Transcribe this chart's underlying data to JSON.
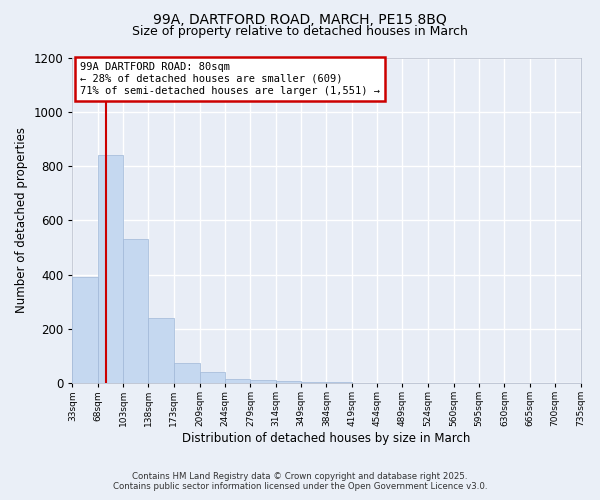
{
  "title_line1": "99A, DARTFORD ROAD, MARCH, PE15 8BQ",
  "title_line2": "Size of property relative to detached houses in March",
  "xlabel": "Distribution of detached houses by size in March",
  "ylabel": "Number of detached properties",
  "bar_values": [
    390,
    840,
    530,
    240,
    75,
    40,
    15,
    10,
    8,
    5,
    3,
    2,
    2,
    1,
    1,
    1,
    1,
    0,
    0,
    0
  ],
  "bin_edges": [
    33,
    68,
    103,
    138,
    173,
    209,
    244,
    279,
    314,
    349,
    384,
    419,
    454,
    489,
    524,
    560,
    595,
    630,
    665,
    700,
    735
  ],
  "tick_labels": [
    "33sqm",
    "68sqm",
    "103sqm",
    "138sqm",
    "173sqm",
    "209sqm",
    "244sqm",
    "279sqm",
    "314sqm",
    "349sqm",
    "384sqm",
    "419sqm",
    "454sqm",
    "489sqm",
    "524sqm",
    "560sqm",
    "595sqm",
    "630sqm",
    "665sqm",
    "700sqm",
    "735sqm"
  ],
  "bar_color": "#c5d8f0",
  "bar_edge_color": "#a0b8d8",
  "background_color": "#eaeff7",
  "plot_bg_color": "#e8edf6",
  "grid_color": "#ffffff",
  "ref_line_x": 80,
  "ref_line_color": "#cc0000",
  "annotation_text": "99A DARTFORD ROAD: 80sqm\n← 28% of detached houses are smaller (609)\n71% of semi-detached houses are larger (1,551) →",
  "annotation_box_color": "#cc0000",
  "ylim": [
    0,
    1200
  ],
  "yticks": [
    0,
    200,
    400,
    600,
    800,
    1000,
    1200
  ],
  "footer_line1": "Contains HM Land Registry data © Crown copyright and database right 2025.",
  "footer_line2": "Contains public sector information licensed under the Open Government Licence v3.0."
}
